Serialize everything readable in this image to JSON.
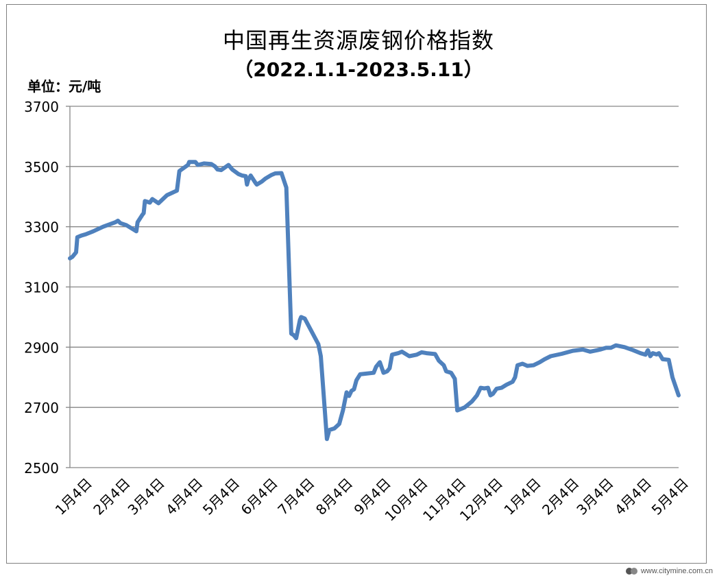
{
  "chart_data": {
    "type": "line",
    "title": "中国再生资源废钢价格指数",
    "subtitle": "（2022.1.1-2023.5.11）",
    "ylabel": "单位：元/吨",
    "xlabel": "",
    "ylim": [
      2500,
      3700
    ],
    "yticks": [
      2500,
      2700,
      2900,
      3100,
      3300,
      3500,
      3700
    ],
    "x_tick_labels": [
      "1月4日",
      "2月4日",
      "3月4日",
      "4月4日",
      "5月4日",
      "6月4日",
      "7月4日",
      "8月4日",
      "9月4日",
      "10月4日",
      "11月4日",
      "12月4日",
      "1月4日",
      "2月4日",
      "3月4日",
      "4月4日",
      "5月4日"
    ],
    "grid": true,
    "legend": "none",
    "line_color": "#4f81bd",
    "series": [
      {
        "values": [
          [
            "2022-01-01",
            3195
          ],
          [
            "2022-01-03",
            3200
          ],
          [
            "2022-01-06",
            3215
          ],
          [
            "2022-01-07",
            3265
          ],
          [
            "2022-01-10",
            3270
          ],
          [
            "2022-01-14",
            3275
          ],
          [
            "2022-01-20",
            3285
          ],
          [
            "2022-01-28",
            3300
          ],
          [
            "2022-02-07",
            3315
          ],
          [
            "2022-02-09",
            3320
          ],
          [
            "2022-02-11",
            3312
          ],
          [
            "2022-02-16",
            3305
          ],
          [
            "2022-02-22",
            3290
          ],
          [
            "2022-02-24",
            3285
          ],
          [
            "2022-02-25",
            3315
          ],
          [
            "2022-03-01",
            3340
          ],
          [
            "2022-03-02",
            3345
          ],
          [
            "2022-03-03",
            3385
          ],
          [
            "2022-03-07",
            3380
          ],
          [
            "2022-03-09",
            3392
          ],
          [
            "2022-03-14",
            3378
          ],
          [
            "2022-03-21",
            3405
          ],
          [
            "2022-03-29",
            3420
          ],
          [
            "2022-03-31",
            3485
          ],
          [
            "2022-04-07",
            3505
          ],
          [
            "2022-04-08",
            3515
          ],
          [
            "2022-04-13",
            3515
          ],
          [
            "2022-04-15",
            3505
          ],
          [
            "2022-04-20",
            3510
          ],
          [
            "2022-04-26",
            3508
          ],
          [
            "2022-04-29",
            3500
          ],
          [
            "2022-05-01",
            3490
          ],
          [
            "2022-05-04",
            3488
          ],
          [
            "2022-05-10",
            3505
          ],
          [
            "2022-05-13",
            3490
          ],
          [
            "2022-05-18",
            3475
          ],
          [
            "2022-05-21",
            3470
          ],
          [
            "2022-05-24",
            3468
          ],
          [
            "2022-05-25",
            3440
          ],
          [
            "2022-05-26",
            3455
          ],
          [
            "2022-05-28",
            3470
          ],
          [
            "2022-06-01",
            3445
          ],
          [
            "2022-06-02",
            3440
          ],
          [
            "2022-06-06",
            3450
          ],
          [
            "2022-06-09",
            3460
          ],
          [
            "2022-06-14",
            3472
          ],
          [
            "2022-06-17",
            3477
          ],
          [
            "2022-06-22",
            3478
          ],
          [
            "2022-06-26",
            3430
          ],
          [
            "2022-06-30",
            2945
          ],
          [
            "2022-07-02",
            2940
          ],
          [
            "2022-07-04",
            2930
          ],
          [
            "2022-07-07",
            2990
          ],
          [
            "2022-07-08",
            3000
          ],
          [
            "2022-07-11",
            2995
          ],
          [
            "2022-07-22",
            2910
          ],
          [
            "2022-07-24",
            2870
          ],
          [
            "2022-07-26",
            2760
          ],
          [
            "2022-07-29",
            2595
          ],
          [
            "2022-07-31",
            2625
          ],
          [
            "2022-08-04",
            2630
          ],
          [
            "2022-08-08",
            2645
          ],
          [
            "2022-08-11",
            2690
          ],
          [
            "2022-08-14",
            2750
          ],
          [
            "2022-08-16",
            2738
          ],
          [
            "2022-08-18",
            2755
          ],
          [
            "2022-08-20",
            2760
          ],
          [
            "2022-08-22",
            2790
          ],
          [
            "2022-08-25",
            2810
          ],
          [
            "2022-09-05",
            2815
          ],
          [
            "2022-09-07",
            2835
          ],
          [
            "2022-09-10",
            2850
          ],
          [
            "2022-09-13",
            2815
          ],
          [
            "2022-09-16",
            2820
          ],
          [
            "2022-09-18",
            2830
          ],
          [
            "2022-09-20",
            2875
          ],
          [
            "2022-09-25",
            2880
          ],
          [
            "2022-09-28",
            2885
          ],
          [
            "2022-10-04",
            2870
          ],
          [
            "2022-10-10",
            2875
          ],
          [
            "2022-10-14",
            2883
          ],
          [
            "2022-10-18",
            2880
          ],
          [
            "2022-10-25",
            2877
          ],
          [
            "2022-10-28",
            2855
          ],
          [
            "2022-11-01",
            2840
          ],
          [
            "2022-11-03",
            2820
          ],
          [
            "2022-11-07",
            2815
          ],
          [
            "2022-11-10",
            2795
          ],
          [
            "2022-11-12",
            2690
          ],
          [
            "2022-11-18",
            2700
          ],
          [
            "2022-11-24",
            2720
          ],
          [
            "2022-11-28",
            2740
          ],
          [
            "2022-12-01",
            2765
          ],
          [
            "2022-12-04",
            2763
          ],
          [
            "2022-12-07",
            2765
          ],
          [
            "2022-12-09",
            2740
          ],
          [
            "2022-12-11",
            2745
          ],
          [
            "2022-12-14",
            2762
          ],
          [
            "2022-12-18",
            2765
          ],
          [
            "2022-12-22",
            2775
          ],
          [
            "2022-12-27",
            2785
          ],
          [
            "2022-12-29",
            2800
          ],
          [
            "2022-12-31",
            2840
          ],
          [
            "2023-01-04",
            2845
          ],
          [
            "2023-01-08",
            2838
          ],
          [
            "2023-01-13",
            2840
          ],
          [
            "2023-01-18",
            2850
          ],
          [
            "2023-01-22",
            2860
          ],
          [
            "2023-01-27",
            2870
          ],
          [
            "2023-02-05",
            2878
          ],
          [
            "2023-02-14",
            2888
          ],
          [
            "2023-02-22",
            2892
          ],
          [
            "2023-02-28",
            2885
          ],
          [
            "2023-03-06",
            2890
          ],
          [
            "2023-03-09",
            2893
          ],
          [
            "2023-03-13",
            2898
          ],
          [
            "2023-03-17",
            2898
          ],
          [
            "2023-03-21",
            2906
          ],
          [
            "2023-03-28",
            2900
          ],
          [
            "2023-04-04",
            2890
          ],
          [
            "2023-04-10",
            2880
          ],
          [
            "2023-04-14",
            2875
          ],
          [
            "2023-04-16",
            2890
          ],
          [
            "2023-04-18",
            2870
          ],
          [
            "2023-04-20",
            2880
          ],
          [
            "2023-04-23",
            2876
          ],
          [
            "2023-04-25",
            2880
          ],
          [
            "2023-04-28",
            2860
          ],
          [
            "2023-05-03",
            2858
          ],
          [
            "2023-05-06",
            2800
          ],
          [
            "2023-05-11",
            2740
          ]
        ]
      }
    ]
  },
  "watermark": {
    "text": "www.citymine.com.cn"
  }
}
